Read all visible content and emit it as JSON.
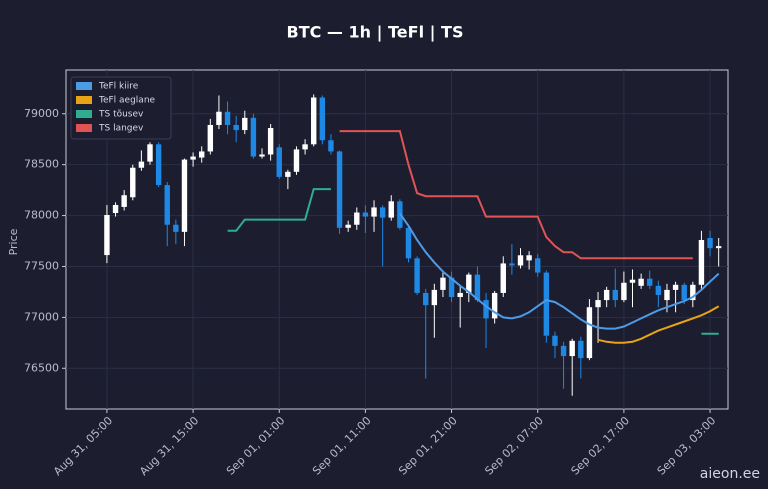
{
  "chart_data": {
    "type": "candlestick",
    "title": "BTC — 1h  |  TeFl  |  TS",
    "y_label": "Price",
    "watermark": "aieon.ee",
    "up_color": "#ffffff",
    "down_color": "#1e88e5",
    "grid": true,
    "legend_position": "upper left",
    "x": [
      "Aug 31, 05:00",
      "Aug 31, 06:00",
      "Aug 31, 07:00",
      "Aug 31, 08:00",
      "Aug 31, 09:00",
      "Aug 31, 10:00",
      "Aug 31, 11:00",
      "Aug 31, 12:00",
      "Aug 31, 13:00",
      "Aug 31, 14:00",
      "Aug 31, 15:00",
      "Aug 31, 16:00",
      "Aug 31, 17:00",
      "Aug 31, 18:00",
      "Aug 31, 19:00",
      "Aug 31, 20:00",
      "Aug 31, 21:00",
      "Aug 31, 22:00",
      "Aug 31, 23:00",
      "Sep 01, 00:00",
      "Sep 01, 01:00",
      "Sep 01, 02:00",
      "Sep 01, 03:00",
      "Sep 01, 04:00",
      "Sep 01, 05:00",
      "Sep 01, 06:00",
      "Sep 01, 07:00",
      "Sep 01, 08:00",
      "Sep 01, 09:00",
      "Sep 01, 10:00",
      "Sep 01, 11:00",
      "Sep 01, 12:00",
      "Sep 01, 13:00",
      "Sep 01, 14:00",
      "Sep 01, 15:00",
      "Sep 01, 16:00",
      "Sep 01, 17:00",
      "Sep 01, 18:00",
      "Sep 01, 19:00",
      "Sep 01, 20:00",
      "Sep 01, 21:00",
      "Sep 01, 22:00",
      "Sep 01, 23:00",
      "Sep 02, 00:00",
      "Sep 02, 01:00",
      "Sep 02, 02:00",
      "Sep 02, 03:00",
      "Sep 02, 04:00",
      "Sep 02, 05:00",
      "Sep 02, 06:00",
      "Sep 02, 07:00",
      "Sep 02, 08:00",
      "Sep 02, 09:00",
      "Sep 02, 10:00",
      "Sep 02, 11:00",
      "Sep 02, 12:00",
      "Sep 02, 13:00",
      "Sep 02, 14:00",
      "Sep 02, 15:00",
      "Sep 02, 16:00",
      "Sep 02, 17:00",
      "Sep 02, 18:00",
      "Sep 02, 19:00",
      "Sep 02, 20:00",
      "Sep 02, 21:00",
      "Sep 02, 22:00",
      "Sep 02, 23:00",
      "Sep 03, 00:00",
      "Sep 03, 01:00",
      "Sep 03, 02:00",
      "Sep 03, 03:00",
      "Sep 03, 04:00"
    ],
    "open": [
      77612,
      78025,
      78085,
      78180,
      78470,
      78530,
      78700,
      78300,
      77910,
      77840,
      78550,
      78570,
      78630,
      78890,
      79020,
      78890,
      78840,
      78960,
      78580,
      78600,
      78670,
      78380,
      78430,
      78650,
      78700,
      79160,
      78740,
      78630,
      77880,
      77910,
      78030,
      77990,
      78080,
      77980,
      78140,
      77880,
      77580,
      77240,
      77120,
      77270,
      77390,
      77200,
      77240,
      77420,
      77170,
      76990,
      77240,
      77530,
      77510,
      77560,
      77580,
      77440,
      76820,
      76720,
      76620,
      76770,
      76600,
      77100,
      77170,
      77270,
      77170,
      77340,
      77310,
      77380,
      77310,
      77170,
      77270,
      77320,
      77170,
      77320,
      77780,
      77680
    ],
    "high": [
      78104,
      78130,
      78250,
      78500,
      78640,
      78720,
      78720,
      78330,
      77960,
      78560,
      78620,
      78680,
      78950,
      79180,
      79120,
      78980,
      79030,
      79000,
      78660,
      78900,
      78700,
      78450,
      78680,
      78750,
      79190,
      79180,
      78800,
      78640,
      77950,
      78080,
      78100,
      78150,
      78100,
      78200,
      78160,
      77900,
      77600,
      77280,
      77330,
      77440,
      77450,
      77300,
      77440,
      77500,
      77240,
      77260,
      77600,
      77720,
      77680,
      77650,
      77620,
      77460,
      76860,
      76760,
      76790,
      76810,
      77180,
      77250,
      77300,
      77480,
      77450,
      77470,
      77430,
      77460,
      77360,
      77330,
      77350,
      77340,
      77350,
      77850,
      77850,
      77780
    ],
    "low": [
      77533,
      77990,
      78050,
      78150,
      78440,
      78500,
      78280,
      77700,
      77720,
      77700,
      78480,
      78520,
      78600,
      78850,
      78800,
      78720,
      78800,
      78560,
      78560,
      78540,
      78360,
      78260,
      78400,
      78600,
      78680,
      78700,
      78600,
      77820,
      77840,
      77860,
      77830,
      77840,
      77500,
      77950,
      77860,
      77540,
      77220,
      76400,
      76800,
      77200,
      77150,
      76900,
      77150,
      77150,
      76700,
      76940,
      77200,
      77420,
      77480,
      77470,
      77400,
      76750,
      76600,
      76300,
      76230,
      76400,
      76580,
      76750,
      77100,
      77100,
      77150,
      77100,
      77280,
      77280,
      77100,
      77050,
      77050,
      77130,
      77100,
      77280,
      77600,
      77500
    ],
    "close": [
      78006,
      78104,
      78200,
      78470,
      78530,
      78700,
      78300,
      77910,
      77840,
      78550,
      78580,
      78630,
      78890,
      79020,
      78890,
      78840,
      78960,
      78580,
      78600,
      78860,
      78380,
      78430,
      78650,
      78700,
      79160,
      78740,
      78630,
      77880,
      77910,
      78030,
      77990,
      78080,
      77980,
      78140,
      77880,
      77580,
      77240,
      77120,
      77270,
      77390,
      77200,
      77240,
      77420,
      77170,
      76990,
      77240,
      77530,
      77510,
      77610,
      77610,
      77440,
      76820,
      76720,
      76620,
      76770,
      76600,
      77100,
      77170,
      77270,
      77170,
      77340,
      77370,
      77380,
      77310,
      77220,
      77270,
      77320,
      77170,
      77320,
      77760,
      77680,
      77700
    ],
    "series": [
      {
        "name": "TeFl kiire",
        "color": "#4d9be6",
        "values": [
          null,
          null,
          null,
          null,
          null,
          null,
          null,
          null,
          null,
          null,
          null,
          null,
          null,
          null,
          null,
          null,
          null,
          null,
          null,
          null,
          null,
          null,
          null,
          null,
          null,
          null,
          null,
          null,
          null,
          null,
          null,
          null,
          null,
          null,
          78020,
          77900,
          77760,
          77640,
          77540,
          77450,
          77380,
          77310,
          77250,
          77180,
          77110,
          77050,
          77000,
          76990,
          77010,
          77050,
          77110,
          77170,
          77150,
          77100,
          77040,
          76980,
          76930,
          76900,
          76890,
          76890,
          76910,
          76950,
          76990,
          77030,
          77070,
          77100,
          77130,
          77160,
          77200,
          77270,
          77350,
          77430
        ]
      },
      {
        "name": "TeFl aeglane",
        "color": "#e8a317",
        "values": [
          null,
          null,
          null,
          null,
          null,
          null,
          null,
          null,
          null,
          null,
          null,
          null,
          null,
          null,
          null,
          null,
          null,
          null,
          null,
          null,
          null,
          null,
          null,
          null,
          null,
          null,
          null,
          null,
          null,
          null,
          null,
          null,
          null,
          null,
          null,
          null,
          null,
          null,
          null,
          null,
          null,
          null,
          null,
          null,
          null,
          null,
          null,
          null,
          null,
          null,
          null,
          null,
          null,
          null,
          null,
          null,
          null,
          76780,
          76760,
          76750,
          76750,
          76760,
          76790,
          76830,
          76870,
          76900,
          76930,
          76960,
          76990,
          77020,
          77060,
          77110
        ]
      },
      {
        "name": "TS tõusev",
        "color": "#2fae8f",
        "values": [
          null,
          null,
          null,
          null,
          null,
          null,
          null,
          null,
          null,
          null,
          null,
          null,
          null,
          null,
          77850,
          77850,
          77960,
          77960,
          77960,
          77960,
          77960,
          77960,
          77960,
          77960,
          78260,
          78260,
          78260,
          null,
          null,
          null,
          null,
          null,
          null,
          null,
          null,
          null,
          null,
          null,
          null,
          null,
          null,
          null,
          null,
          null,
          null,
          null,
          null,
          null,
          null,
          null,
          null,
          null,
          null,
          null,
          null,
          null,
          null,
          null,
          null,
          null,
          null,
          null,
          null,
          null,
          null,
          null,
          null,
          null,
          null,
          76840,
          76840,
          76840
        ]
      },
      {
        "name": "TS langev",
        "color": "#e05454",
        "values": [
          null,
          null,
          null,
          null,
          null,
          null,
          null,
          null,
          null,
          null,
          null,
          null,
          null,
          null,
          null,
          null,
          null,
          null,
          null,
          null,
          null,
          null,
          null,
          null,
          null,
          null,
          null,
          78830,
          78830,
          78830,
          78830,
          78830,
          78830,
          78830,
          78830,
          78500,
          78220,
          78190,
          78190,
          78190,
          78190,
          78190,
          78190,
          78190,
          77990,
          77990,
          77990,
          77990,
          77990,
          77990,
          77990,
          77790,
          77700,
          77640,
          77640,
          77580,
          77580,
          77580,
          77580,
          77580,
          77580,
          77580,
          77580,
          77580,
          77580,
          77580,
          77580,
          77580,
          77580,
          null,
          null,
          null
        ]
      }
    ],
    "xlim": [
      "Aug 31, 00:15",
      "Sep 03, 05:05"
    ],
    "xticks": [
      "Aug 31, 05:00",
      "Aug 31, 15:00",
      "Sep 01, 01:00",
      "Sep 01, 11:00",
      "Sep 01, 21:00",
      "Sep 02, 07:00",
      "Sep 02, 17:00",
      "Sep 03, 03:00"
    ],
    "ylim": [
      76100,
      79430
    ],
    "yticks": [
      76500,
      77000,
      77500,
      78000,
      78500,
      79000
    ]
  }
}
